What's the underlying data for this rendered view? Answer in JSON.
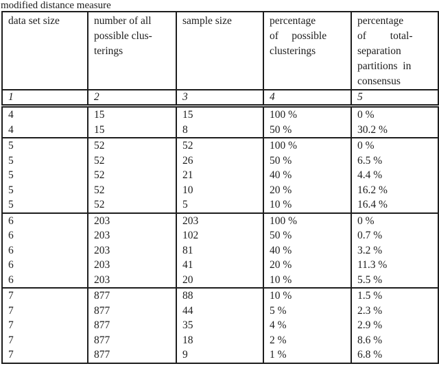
{
  "caption": "modified distance measure",
  "colors": {
    "text": "#1c1c1c",
    "border": "#1c1c1c",
    "background": "#ffffff"
  },
  "table": {
    "headers": [
      {
        "label": "data set size"
      },
      {
        "label": "number of all\npossible clus-\nterings"
      },
      {
        "label": "sample size"
      },
      {
        "label": "percentage\nof     possible\nclusterings"
      },
      {
        "label": "percentage\nof         total-\nseparation\npartitions  in\nconsensus"
      }
    ],
    "column_numbers": [
      "1",
      "2",
      "3",
      "4",
      "5"
    ],
    "groups": [
      {
        "rows": [
          [
            "4",
            "15",
            "15",
            "100 %",
            "0 %"
          ],
          [
            "4",
            "15",
            "8",
            "50 %",
            "30.2 %"
          ]
        ]
      },
      {
        "rows": [
          [
            "5",
            "52",
            "52",
            "100 %",
            "0 %"
          ],
          [
            "5",
            "52",
            "26",
            "50 %",
            "6.5 %"
          ],
          [
            "5",
            "52",
            "21",
            "40 %",
            "4.4 %"
          ],
          [
            "5",
            "52",
            "10",
            "20 %",
            "16.2 %"
          ],
          [
            "5",
            "52",
            "5",
            "10 %",
            "16.4 %"
          ]
        ]
      },
      {
        "rows": [
          [
            "6",
            "203",
            "203",
            "100 %",
            "0 %"
          ],
          [
            "6",
            "203",
            "102",
            "50 %",
            "0.7 %"
          ],
          [
            "6",
            "203",
            "81",
            "40 %",
            "3.2 %"
          ],
          [
            "6",
            "203",
            "41",
            "20 %",
            "11.3 %"
          ],
          [
            "6",
            "203",
            "20",
            "10 %",
            "5.5 %"
          ]
        ]
      },
      {
        "rows": [
          [
            "7",
            "877",
            "88",
            "10 %",
            "1.5 %"
          ],
          [
            "7",
            "877",
            "44",
            "5 %",
            "2.3 %"
          ],
          [
            "7",
            "877",
            "35",
            "4 %",
            "2.9 %"
          ],
          [
            "7",
            "877",
            "18",
            "2 %",
            "8.6 %"
          ],
          [
            "7",
            "877",
            "9",
            "1 %",
            "6.8 %"
          ]
        ]
      }
    ]
  }
}
